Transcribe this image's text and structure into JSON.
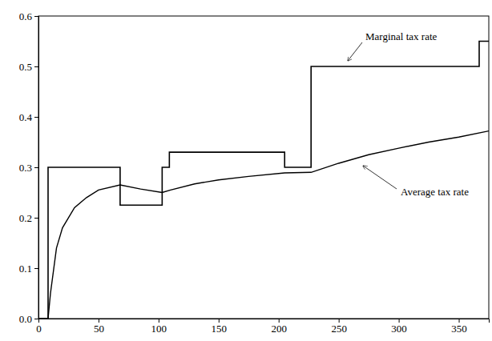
{
  "chart_data": {
    "type": "line",
    "xlim": [
      0,
      375
    ],
    "xticks": [
      0,
      50,
      100,
      150,
      200,
      250,
      300,
      350
    ],
    "ylim": [
      0,
      0.6
    ],
    "yticks": [
      {
        "value": 0,
        "label": "0.0"
      },
      0.1,
      0.2,
      0.3,
      0.4,
      0.5,
      0.6
    ],
    "series": [
      {
        "name": "Marginal tax rate",
        "color": "#000000",
        "line_style": "step",
        "x": [
          0,
          8,
          68,
          103,
          109,
          205,
          227,
          367,
          375
        ],
        "values": [
          0,
          0.3,
          0.225,
          0.3,
          0.33,
          0.3,
          0.5,
          0.55,
          0.55
        ]
      },
      {
        "name": "Average tax rate",
        "color": "#000000",
        "line_style": "solid",
        "x": [
          0,
          8,
          10,
          15,
          20,
          30,
          40,
          50,
          68,
          85,
          103,
          110,
          130,
          150,
          175,
          205,
          227,
          250,
          275,
          300,
          325,
          350,
          375
        ],
        "values": [
          0,
          0,
          0.05,
          0.14,
          0.18,
          0.22,
          0.24,
          0.255,
          0.265,
          0.257,
          0.25,
          0.255,
          0.267,
          0.275,
          0.282,
          0.289,
          0.29,
          0.308,
          0.325,
          0.338,
          0.35,
          0.36,
          0.372
        ]
      }
    ]
  }
}
